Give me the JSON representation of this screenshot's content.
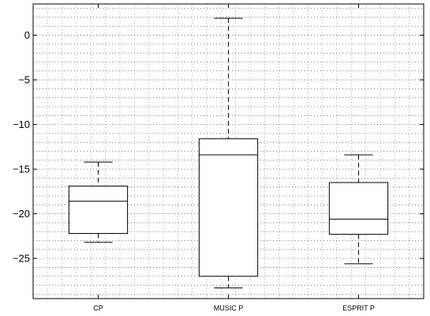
{
  "chart_data": {
    "type": "boxplot",
    "title": "",
    "xlabel": "",
    "ylabel": "",
    "ylim": [
      -29.5,
      3.5
    ],
    "yticks": [
      0,
      -5,
      -10,
      -15,
      -20,
      -25
    ],
    "ytick_labels": [
      "0",
      "−5",
      "−10",
      "−15",
      "−20",
      "−25"
    ],
    "y_minor_step": 1,
    "grid": "dotted",
    "categories": [
      "CP",
      "MUSIC P",
      "ESPRIT P"
    ],
    "boxes": [
      {
        "name": "CP",
        "whisker_low": -23.2,
        "q1": -22.2,
        "median": -18.6,
        "q3": -16.9,
        "whisker_high": -14.2
      },
      {
        "name": "MUSIC P",
        "whisker_low": -28.3,
        "q1": -27.0,
        "median": -13.4,
        "q3": -11.6,
        "whisker_high": 1.9
      },
      {
        "name": "ESPRIT P",
        "whisker_low": -25.6,
        "q1": -22.3,
        "median": -20.6,
        "q3": -16.5,
        "whisker_high": -13.4
      }
    ]
  }
}
